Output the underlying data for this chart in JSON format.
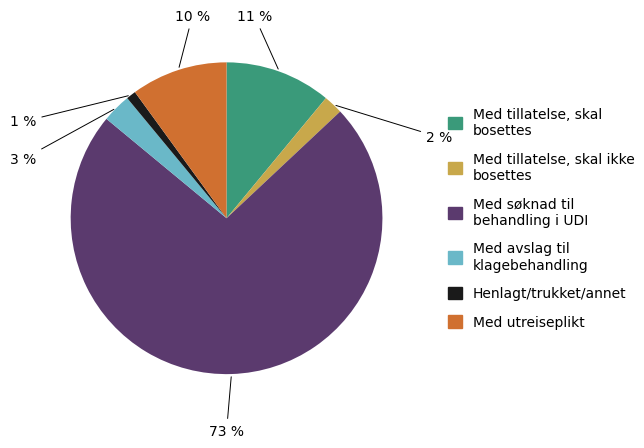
{
  "labels": [
    "Med tillatelse, skal\nbosettes",
    "Med tillatelse, skal ikke\nbosettes",
    "Med søknad til\nbehandling i UDI",
    "Med avslag til\nklagebehandling",
    "Henlagt/trukket/annet",
    "Med utreiseplikt"
  ],
  "values": [
    11,
    2,
    73,
    3,
    1,
    10
  ],
  "colors": [
    "#3a9a7a",
    "#c8a84b",
    "#5b3a6e",
    "#6ab8c8",
    "#1a1a1a",
    "#d07030"
  ],
  "pct_labels": [
    "11 %",
    "2 %",
    "73 %",
    "3 %",
    "1 %",
    "10 %"
  ],
  "background_color": "#ffffff",
  "text_color": "#000000",
  "font_size": 10,
  "legend_font_size": 10
}
